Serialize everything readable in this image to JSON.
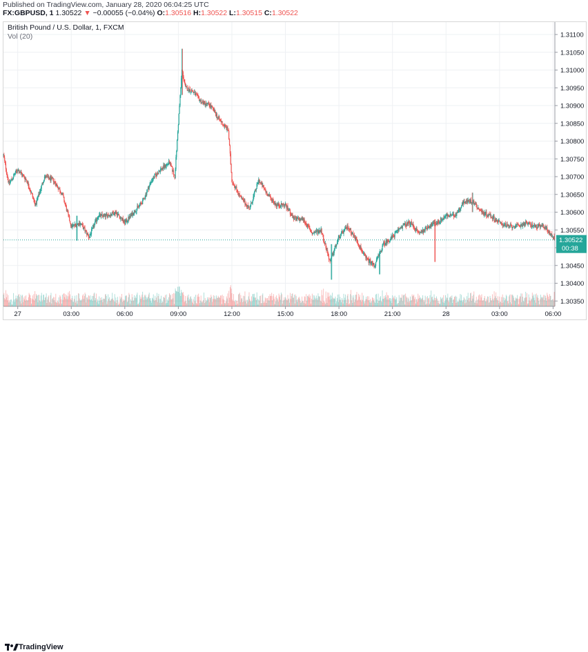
{
  "header": {
    "published": "Published on TradingView.com, January 28, 2020 06:04:25 UTC",
    "symbol": "FX:GBPUSD, 1",
    "last": "1.30522",
    "change_arrow": "▼",
    "change": "−0.00055 (−0.04%)",
    "o_label": "O:",
    "o_value": "1.30516",
    "h_label": "H:",
    "h_value": "1.30522",
    "l_label": "L:",
    "l_value": "1.30515",
    "c_label": "C:",
    "c_value": "1.30522"
  },
  "legend": {
    "title": "British Pound / U.S. Dollar, 1, FXCM",
    "volume": "Vol (20)"
  },
  "footer": {
    "brand": "TradingView",
    "logo_icon": "tradingview-logo-icon"
  },
  "colors": {
    "up": "#26a69a",
    "down": "#ef5350",
    "price_label": "#26a69a",
    "grid": "#eef0f3",
    "axis_text": "#131722"
  },
  "chart_data": {
    "type": "candlestick",
    "instrument": "GBPUSD",
    "interval_minutes": 1,
    "ylim": [
      1.30335,
      1.31135
    ],
    "y_ticks": [
      "1.31100",
      "1.31050",
      "1.31000",
      "1.30950",
      "1.30900",
      "1.30850",
      "1.30800",
      "1.30750",
      "1.30700",
      "1.30650",
      "1.30600",
      "1.30550",
      "1.30500",
      "1.30450",
      "1.30400",
      "1.30350"
    ],
    "x_ticks": [
      {
        "label": "27",
        "hour": 0
      },
      {
        "label": "03:00",
        "hour": 3
      },
      {
        "label": "06:00",
        "hour": 6
      },
      {
        "label": "09:00",
        "hour": 9
      },
      {
        "label": "12:00",
        "hour": 12
      },
      {
        "label": "15:00",
        "hour": 15
      },
      {
        "label": "18:00",
        "hour": 18
      },
      {
        "label": "21:00",
        "hour": 21
      },
      {
        "label": "28",
        "hour": 24
      },
      {
        "label": "03:00",
        "hour": 27
      },
      {
        "label": "06:00",
        "hour": 30
      }
    ],
    "x_range_hours": [
      -0.8,
      30.1
    ],
    "price_path": [
      {
        "h": -0.8,
        "p": 1.3076
      },
      {
        "h": -0.5,
        "p": 1.3068
      },
      {
        "h": 0.0,
        "p": 1.3072
      },
      {
        "h": 0.5,
        "p": 1.3069
      },
      {
        "h": 1.0,
        "p": 1.3062
      },
      {
        "h": 1.5,
        "p": 1.307
      },
      {
        "h": 2.0,
        "p": 1.3069
      },
      {
        "h": 2.5,
        "p": 1.3065
      },
      {
        "h": 3.0,
        "p": 1.3056
      },
      {
        "h": 3.5,
        "p": 1.3057
      },
      {
        "h": 4.0,
        "p": 1.3053
      },
      {
        "h": 4.5,
        "p": 1.3059
      },
      {
        "h": 5.0,
        "p": 1.3059
      },
      {
        "h": 5.5,
        "p": 1.306
      },
      {
        "h": 6.0,
        "p": 1.3057
      },
      {
        "h": 6.5,
        "p": 1.306
      },
      {
        "h": 7.0,
        "p": 1.3063
      },
      {
        "h": 7.5,
        "p": 1.3069
      },
      {
        "h": 8.0,
        "p": 1.3072
      },
      {
        "h": 8.5,
        "p": 1.3074
      },
      {
        "h": 8.8,
        "p": 1.307
      },
      {
        "h": 9.0,
        "p": 1.3085
      },
      {
        "h": 9.2,
        "p": 1.31
      },
      {
        "h": 9.4,
        "p": 1.3095
      },
      {
        "h": 9.8,
        "p": 1.3094
      },
      {
        "h": 10.3,
        "p": 1.3091
      },
      {
        "h": 10.8,
        "p": 1.309
      },
      {
        "h": 11.3,
        "p": 1.3086
      },
      {
        "h": 11.8,
        "p": 1.3083
      },
      {
        "h": 12.0,
        "p": 1.3069
      },
      {
        "h": 12.5,
        "p": 1.3064
      },
      {
        "h": 13.0,
        "p": 1.3061
      },
      {
        "h": 13.5,
        "p": 1.3069
      },
      {
        "h": 14.0,
        "p": 1.3065
      },
      {
        "h": 14.5,
        "p": 1.3062
      },
      {
        "h": 15.0,
        "p": 1.3062
      },
      {
        "h": 15.5,
        "p": 1.3058
      },
      {
        "h": 16.0,
        "p": 1.3058
      },
      {
        "h": 16.5,
        "p": 1.3054
      },
      {
        "h": 17.0,
        "p": 1.3055
      },
      {
        "h": 17.5,
        "p": 1.3046
      },
      {
        "h": 18.0,
        "p": 1.3053
      },
      {
        "h": 18.5,
        "p": 1.3056
      },
      {
        "h": 19.0,
        "p": 1.3052
      },
      {
        "h": 19.5,
        "p": 1.3047
      },
      {
        "h": 20.0,
        "p": 1.3045
      },
      {
        "h": 20.5,
        "p": 1.3051
      },
      {
        "h": 21.0,
        "p": 1.3053
      },
      {
        "h": 21.5,
        "p": 1.3056
      },
      {
        "h": 22.0,
        "p": 1.3057
      },
      {
        "h": 22.5,
        "p": 1.3054
      },
      {
        "h": 23.0,
        "p": 1.3056
      },
      {
        "h": 23.5,
        "p": 1.3057
      },
      {
        "h": 24.0,
        "p": 1.3059
      },
      {
        "h": 24.5,
        "p": 1.3059
      },
      {
        "h": 25.0,
        "p": 1.3063
      },
      {
        "h": 25.5,
        "p": 1.3063
      },
      {
        "h": 26.0,
        "p": 1.306
      },
      {
        "h": 26.5,
        "p": 1.3059
      },
      {
        "h": 27.0,
        "p": 1.3057
      },
      {
        "h": 27.5,
        "p": 1.3056
      },
      {
        "h": 28.0,
        "p": 1.3056
      },
      {
        "h": 28.5,
        "p": 1.3057
      },
      {
        "h": 29.0,
        "p": 1.3056
      },
      {
        "h": 29.5,
        "p": 1.3056
      },
      {
        "h": 30.0,
        "p": 1.3053
      },
      {
        "h": 30.1,
        "p": 1.30522
      }
    ],
    "extremes": [
      {
        "h": 9.2,
        "high": 1.3106,
        "low": 1.3093
      },
      {
        "h": 17.6,
        "high": 1.3051,
        "low": 1.3041
      },
      {
        "h": 20.3,
        "high": 1.3049,
        "low": 1.30425
      },
      {
        "h": 3.3,
        "high": 1.3059,
        "low": 1.3052
      },
      {
        "h": 23.4,
        "high": 1.3058,
        "low": 1.3046
      },
      {
        "h": 25.5,
        "high": 1.30655,
        "low": 1.306
      }
    ],
    "last_price": "1.30522",
    "countdown": "00:38",
    "volume_series": "Vol (20)"
  }
}
